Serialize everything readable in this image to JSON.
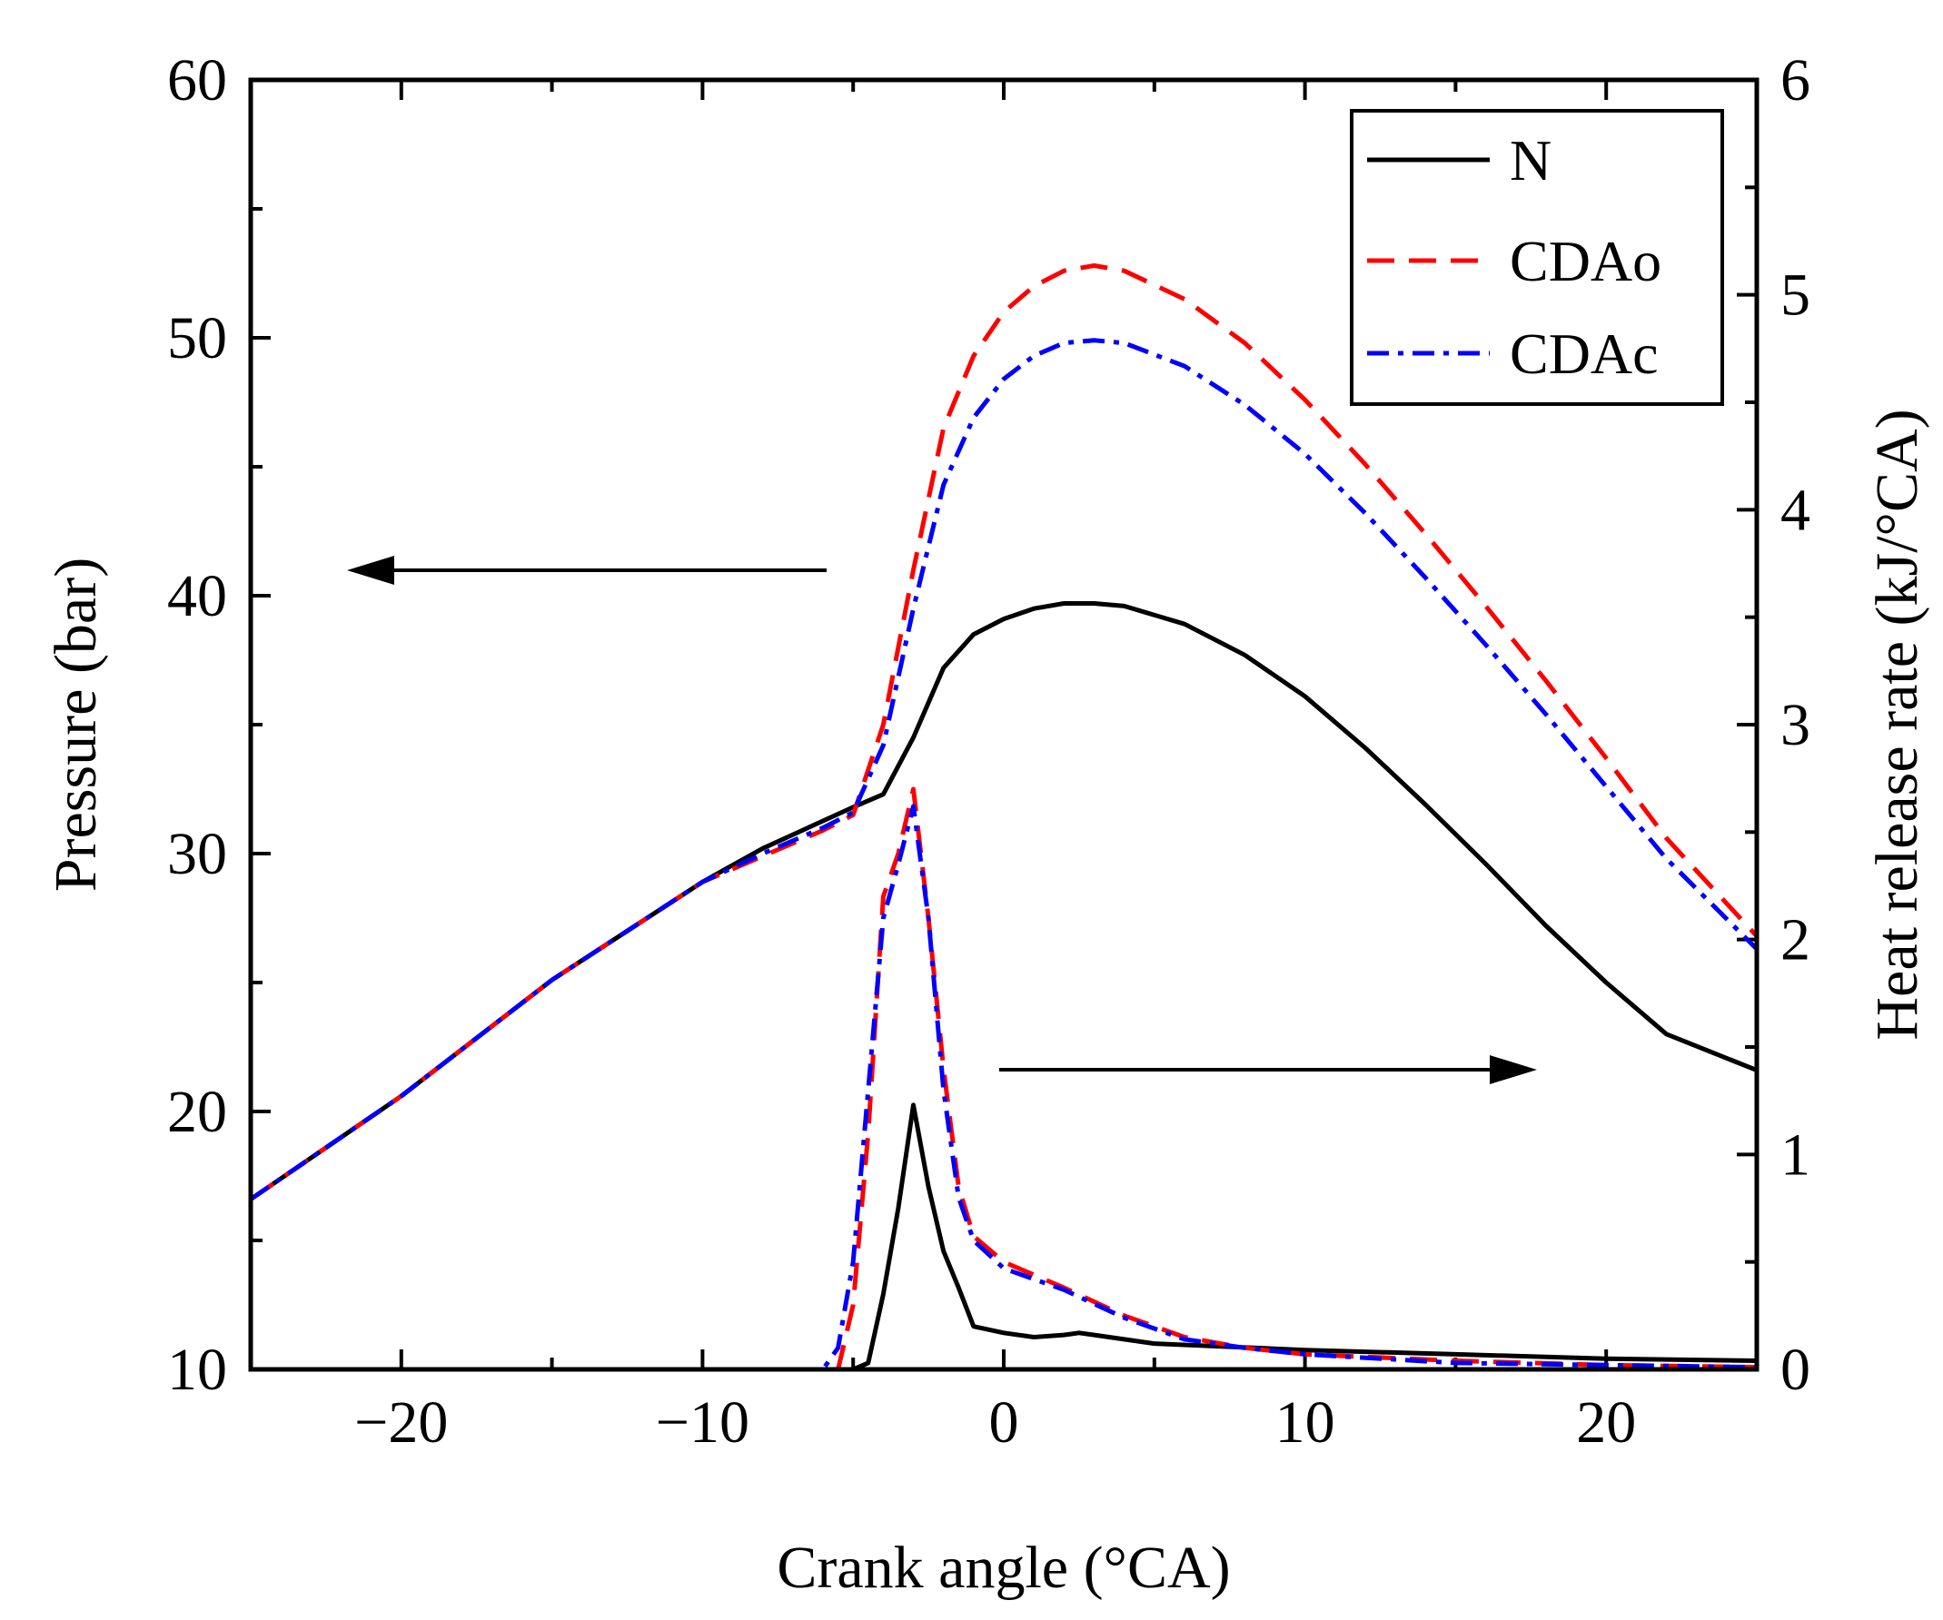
{
  "chart_data": {
    "type": "line",
    "xlabel": "Crank angle (°CA)",
    "ylabel_left": "Pressure (bar)",
    "ylabel_right": "Heat release rate (kJ/°CA)",
    "xlim": [
      -25,
      25
    ],
    "ylim_left": [
      10,
      60
    ],
    "ylim_right": [
      0,
      6
    ],
    "x_ticks": [
      -20,
      -10,
      0,
      10,
      20
    ],
    "x_tick_labels": [
      "−20",
      "−10",
      "0",
      "10",
      "20"
    ],
    "y_left_ticks": [
      10,
      20,
      30,
      40,
      50,
      60
    ],
    "y_left_tick_labels": [
      "10",
      "20",
      "30",
      "40",
      "50",
      "60"
    ],
    "y_right_ticks": [
      0,
      1,
      2,
      3,
      4,
      5,
      6
    ],
    "y_right_tick_labels": [
      "0",
      "1",
      "2",
      "3",
      "4",
      "5",
      "6"
    ],
    "legend": {
      "position": "top-right",
      "entries": [
        "N",
        "CDAo",
        "CDAc"
      ]
    },
    "annotations": [
      {
        "type": "arrow",
        "direction": "left",
        "meaning": "pressure curves use left axis"
      },
      {
        "type": "arrow",
        "direction": "right",
        "meaning": "heat release curves use right axis"
      }
    ],
    "series": [
      {
        "name": "N",
        "axis": "left",
        "quantity": "pressure",
        "color": "#000000",
        "dash": "solid",
        "x": [
          -25,
          -20,
          -15,
          -10,
          -8,
          -5,
          -4,
          -3,
          -2,
          -1,
          0,
          1,
          2,
          3,
          4,
          6,
          8,
          10,
          12,
          14,
          16,
          18,
          20,
          22,
          25
        ],
        "y": [
          16.6,
          20.6,
          25.1,
          28.9,
          30.2,
          31.8,
          32.3,
          34.5,
          37.2,
          38.5,
          39.1,
          39.5,
          39.7,
          39.7,
          39.6,
          38.9,
          37.7,
          36.1,
          34.1,
          31.9,
          29.6,
          27.2,
          25.0,
          23.0,
          21.6
        ]
      },
      {
        "name": "CDAo",
        "axis": "left",
        "quantity": "pressure",
        "color": "#ff0000",
        "dash": "dashed",
        "x": [
          -25,
          -20,
          -15,
          -10,
          -8,
          -6,
          -5,
          -4,
          -3,
          -2,
          -1,
          0,
          1,
          2,
          3,
          4,
          6,
          8,
          10,
          12,
          14,
          16,
          18,
          20,
          22,
          25
        ],
        "y": [
          16.6,
          20.6,
          25.1,
          28.9,
          29.9,
          30.9,
          31.5,
          35.0,
          41.0,
          46.5,
          49.3,
          51.0,
          52.0,
          52.6,
          52.8,
          52.6,
          51.5,
          49.8,
          47.6,
          45.1,
          42.4,
          39.6,
          36.7,
          33.7,
          30.6,
          26.8
        ]
      },
      {
        "name": "CDAc",
        "axis": "left",
        "quantity": "pressure",
        "color": "#0000ff",
        "dash": "dashdot",
        "x": [
          -25,
          -20,
          -15,
          -10,
          -8,
          -6,
          -5,
          -4,
          -3,
          -2,
          -1,
          0,
          1,
          2,
          3,
          4,
          6,
          8,
          10,
          12,
          14,
          16,
          18,
          20,
          22,
          25
        ],
        "y": [
          16.6,
          20.6,
          25.1,
          28.9,
          30.0,
          31.0,
          31.6,
          34.2,
          39.5,
          44.3,
          46.9,
          48.4,
          49.3,
          49.8,
          49.9,
          49.8,
          48.9,
          47.4,
          45.5,
          43.2,
          40.7,
          38.1,
          35.4,
          32.6,
          29.8,
          26.3
        ]
      },
      {
        "name": "N",
        "axis": "right",
        "quantity": "heat_release_rate",
        "color": "#000000",
        "dash": "solid",
        "x": [
          -25,
          -5,
          -4.5,
          -4,
          -3.5,
          -3,
          -2.5,
          -2,
          -1.5,
          -1,
          0,
          1,
          2,
          2.5,
          3,
          5,
          10,
          15,
          20,
          25
        ],
        "y": [
          0,
          0,
          0.03,
          0.35,
          0.75,
          1.23,
          0.85,
          0.55,
          0.38,
          0.2,
          0.17,
          0.15,
          0.16,
          0.17,
          0.16,
          0.12,
          0.09,
          0.07,
          0.05,
          0.04
        ]
      },
      {
        "name": "CDAo",
        "axis": "right",
        "quantity": "heat_release_rate",
        "color": "#ff0000",
        "dash": "dashed",
        "x": [
          -25,
          -5.5,
          -5,
          -4.5,
          -4,
          -3.5,
          -3,
          -2.5,
          -2,
          -1.5,
          -1,
          0,
          2,
          4,
          6,
          8,
          10,
          15,
          20,
          25
        ],
        "y": [
          0,
          0,
          0.3,
          1.1,
          2.2,
          2.4,
          2.7,
          2.1,
          1.4,
          0.85,
          0.62,
          0.5,
          0.38,
          0.25,
          0.15,
          0.1,
          0.07,
          0.04,
          0.02,
          0.01
        ]
      },
      {
        "name": "CDAc",
        "axis": "right",
        "quantity": "heat_release_rate",
        "color": "#0000ff",
        "dash": "dashdot",
        "x": [
          -25,
          -6,
          -5.5,
          -5,
          -4.5,
          -4,
          -3.5,
          -3,
          -2.5,
          -2,
          -1.5,
          -1,
          0,
          2,
          4,
          6,
          8,
          10,
          15,
          20,
          25
        ],
        "y": [
          0,
          0,
          0.1,
          0.5,
          1.3,
          2.1,
          2.35,
          2.62,
          2.1,
          1.3,
          0.8,
          0.6,
          0.47,
          0.37,
          0.24,
          0.14,
          0.1,
          0.07,
          0.03,
          0.02,
          0.01
        ]
      }
    ]
  }
}
